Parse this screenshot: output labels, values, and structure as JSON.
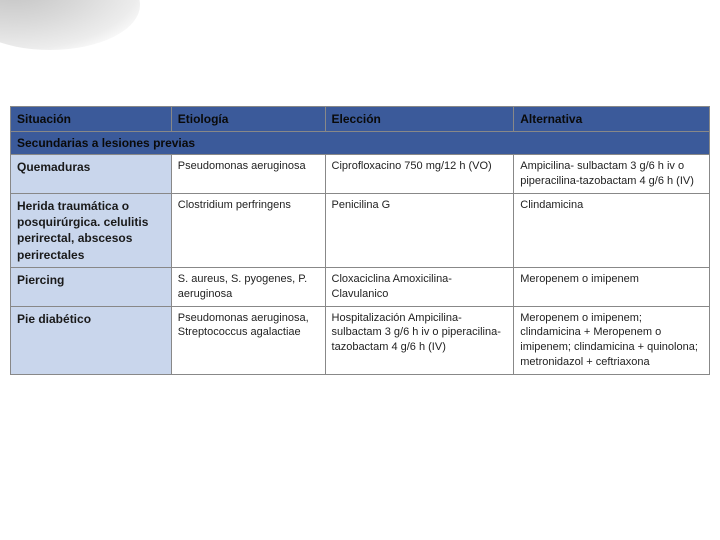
{
  "headers": {
    "situacion": "Situación",
    "etiologia": "Etiología",
    "eleccion": "Elección",
    "alternativa": "Alternativa"
  },
  "section_title": "Secundarias a lesiones previas",
  "rows": [
    {
      "situacion": "Quemaduras",
      "etiologia": "Pseudomonas aeruginosa",
      "eleccion": "Ciprofloxacino 750 mg/12 h (VO)",
      "alternativa": "Ampicilina- sulbactam 3 g/6 h iv o piperacilina-tazobactam 4 g/6 h (IV)"
    },
    {
      "situacion": "Herida traumática o posquirúrgica. celulitis perirectal, abscesos perirectales",
      "etiologia": "Clostridium perfringens",
      "eleccion": "Penicilina G",
      "alternativa": "Clindamicina"
    },
    {
      "situacion": "Piercing",
      "etiologia": "S. aureus, S. pyogenes, P. aeruginosa",
      "eleccion": "Cloxaciclina Amoxicilina-Clavulanico",
      "alternativa": "Meropenem o imipenem"
    },
    {
      "situacion": "Pie diabético",
      "etiologia": "Pseudomonas aeruginosa, Streptococcus agalactiae",
      "eleccion": "Hospitalización Ampicilina- sulbactam 3 g/6 h iv o piperacilina-tazobactam 4 g/6 h (IV)",
      "alternativa": "Meropenem o imipenem; clindamicina + Meropenem o imipenem; clindamicina + quinolona; metronidazol + ceftriaxona"
    }
  ]
}
